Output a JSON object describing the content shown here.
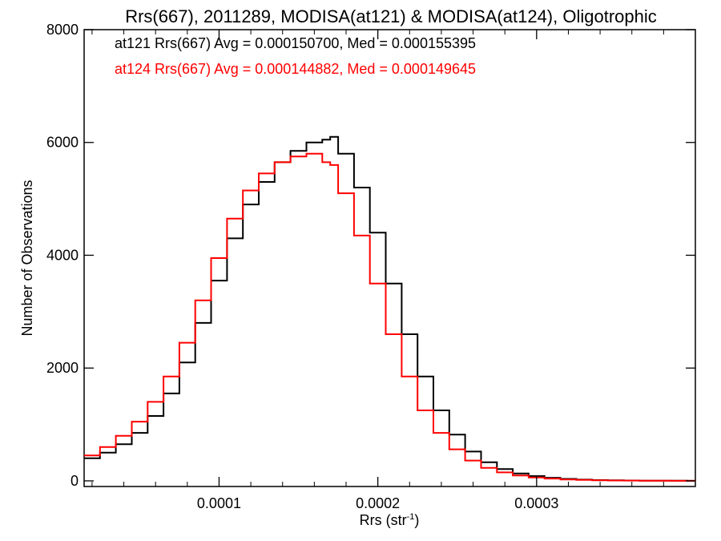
{
  "chart_data": {
    "type": "line",
    "title": "Rrs(667), 2011289, MODISA(at121) & MODISA(at124), Oligotrophic",
    "xlabel": "Rrs (str",
    "xlabel_sup": "-1",
    "xlabel_suffix": ")",
    "ylabel": "Number of Observations",
    "xlim": [
      1.5e-05,
      0.0004
    ],
    "ylim": [
      -100,
      8000
    ],
    "x_ticks": [
      0.0001,
      0.0002,
      0.0003
    ],
    "x_tick_labels": [
      "0.0001",
      "0.0002",
      "0.0003"
    ],
    "y_ticks": [
      0,
      2000,
      4000,
      6000,
      8000
    ],
    "y_tick_labels": [
      "0",
      "2000",
      "4000",
      "6000",
      "8000"
    ],
    "annotations": [
      {
        "text": "at121 Rrs(667) Avg = 0.000150700, Med = 0.000155395",
        "color": "#000000"
      },
      {
        "text": "at124 Rrs(667) Avg = 0.000144882, Med = 0.000149645",
        "color": "#ff0000"
      }
    ],
    "series": [
      {
        "color": "#000000",
        "x": [
          1.5e-05,
          2.5e-05,
          3.5e-05,
          4.5e-05,
          5.5e-05,
          6.5e-05,
          7.5e-05,
          8.5e-05,
          9.5e-05,
          0.000105,
          0.000115,
          0.000125,
          0.000135,
          0.000145,
          0.000155,
          0.000165,
          0.00017,
          0.000175,
          0.000185,
          0.000195,
          0.000205,
          0.000215,
          0.000225,
          0.000235,
          0.000245,
          0.000255,
          0.000265,
          0.000275,
          0.000285,
          0.000295,
          0.000305,
          0.000315,
          0.000325,
          0.000335,
          0.000345,
          0.000355,
          0.000365,
          0.000375,
          0.000385,
          0.000395,
          0.0004
        ],
        "values": [
          400,
          500,
          650,
          850,
          1150,
          1550,
          2100,
          2800,
          3550,
          4300,
          4900,
          5300,
          5650,
          5850,
          6000,
          6050,
          6100,
          5800,
          5200,
          4400,
          3500,
          2600,
          1850,
          1250,
          820,
          520,
          330,
          210,
          130,
          85,
          55,
          35,
          22,
          14,
          9,
          6,
          4,
          3,
          2,
          1,
          1
        ]
      },
      {
        "color": "#ff0000",
        "x": [
          1.5e-05,
          2.5e-05,
          3.5e-05,
          4.5e-05,
          5.5e-05,
          6.5e-05,
          7.5e-05,
          8.5e-05,
          9.5e-05,
          0.000105,
          0.000115,
          0.000125,
          0.000135,
          0.000145,
          0.000155,
          0.000165,
          0.00017,
          0.000175,
          0.000185,
          0.000195,
          0.000205,
          0.000215,
          0.000225,
          0.000235,
          0.000245,
          0.000255,
          0.000265,
          0.000275,
          0.000285,
          0.000295,
          0.000305,
          0.000315,
          0.000325,
          0.000335,
          0.000345,
          0.000355,
          0.000365,
          0.000375,
          0.000385,
          0.000395,
          0.0004
        ],
        "values": [
          450,
          600,
          800,
          1050,
          1400,
          1850,
          2450,
          3200,
          3950,
          4650,
          5150,
          5450,
          5650,
          5750,
          5800,
          5650,
          5600,
          5100,
          4350,
          3500,
          2600,
          1850,
          1250,
          850,
          560,
          360,
          230,
          150,
          95,
          60,
          40,
          25,
          16,
          10,
          7,
          5,
          3,
          2,
          1,
          1,
          1
        ]
      }
    ]
  }
}
